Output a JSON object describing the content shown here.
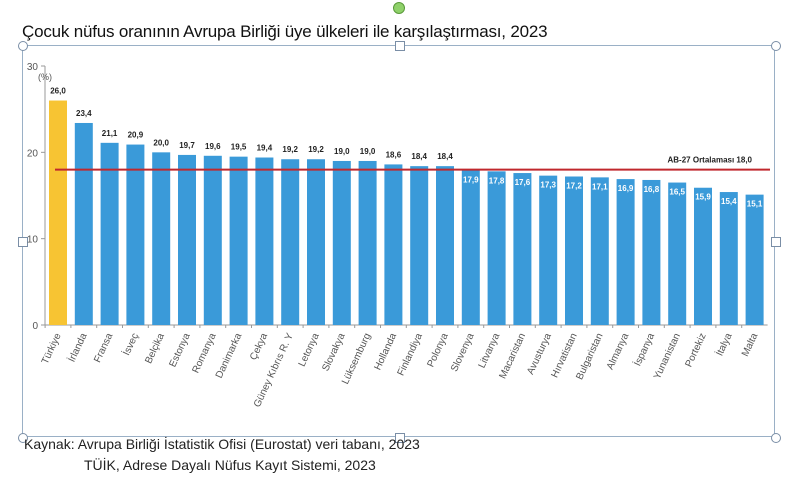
{
  "title": "Çocuk nüfus oranının Avrupa Birliği üye ülkeleri ile karşılaştırması, 2023",
  "source_lines": [
    "Kaynak: Avrupa Birliği İstatistik Ofisi (Eurostat) veri tabanı, 2023",
    "TÜİK, Adrese Dayalı Nüfus Kayıt Sistemi, 2023"
  ],
  "chart_data": {
    "type": "bar",
    "title": "Çocuk nüfus oranının Avrupa Birliği üye ülkeleri ile karşılaştırması, 2023",
    "ylabel": "(%)",
    "xlabel": "",
    "ylim": [
      0,
      30
    ],
    "yticks": [
      0,
      10,
      20,
      30
    ],
    "grid": false,
    "categories": [
      "Türkiye",
      "İrlanda",
      "Fransa",
      "İsveç",
      "Belçika",
      "Estonya",
      "Romanya",
      "Danimarka",
      "Çekya",
      "Güney Kıbrıs R. Y",
      "Letonya",
      "Slovakya",
      "Lüksemburg",
      "Hollanda",
      "Finlandiya",
      "Polonya",
      "Slovenya",
      "Litvanya",
      "Macaristan",
      "Avusturya",
      "Hırvatistan",
      "Bulgaristan",
      "Almanya",
      "İspanya",
      "Yunanistan",
      "Portekiz",
      "İtalya",
      "Malta"
    ],
    "values": [
      26.0,
      23.4,
      21.1,
      20.9,
      20.0,
      19.7,
      19.6,
      19.5,
      19.4,
      19.2,
      19.2,
      19.0,
      19.0,
      18.6,
      18.4,
      18.4,
      17.9,
      17.8,
      17.6,
      17.3,
      17.2,
      17.1,
      16.9,
      16.8,
      16.5,
      15.9,
      15.4,
      15.1
    ],
    "value_labels": [
      "26,0",
      "23,4",
      "21,1",
      "20,9",
      "20,0",
      "19,7",
      "19,6",
      "19,5",
      "19,4",
      "19,2",
      "19,2",
      "19,0",
      "19,0",
      "18,6",
      "18,4",
      "18,4",
      "17,9",
      "17,8",
      "17,6",
      "17,3",
      "17,2",
      "17,1",
      "16,9",
      "16,8",
      "16,5",
      "15,9",
      "15,4",
      "15,1"
    ],
    "highlight_category": "Türkiye",
    "reference_line": {
      "value": 18.0,
      "label": "AB-27 Ortalaması 18,0",
      "color": "#c0282d"
    },
    "colors": {
      "bar": "#3a9ad9",
      "highlight": "#f7c433",
      "axis": "#999999"
    }
  }
}
